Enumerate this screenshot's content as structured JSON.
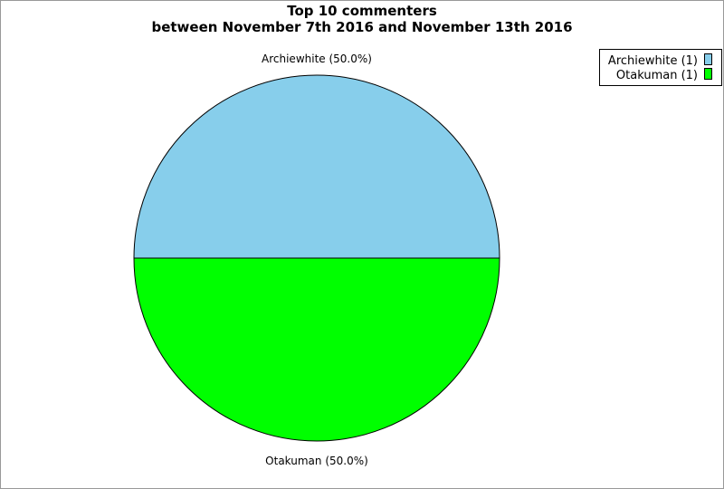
{
  "chart_data": {
    "type": "pie",
    "title": "Top 10 commenters",
    "subtitle": "between November 7th 2016 and November 13th 2016",
    "slices": [
      {
        "label": "Archiewhite",
        "value": 1,
        "percent_label": "Archiewhite (50.0%)",
        "legend_label": "Archiewhite (1)",
        "color": "#87ceeb"
      },
      {
        "label": "Otakuman",
        "value": 1,
        "percent_label": "Otakuman (50.0%)",
        "legend_label": "Otakuman (1)",
        "color": "#00ff00"
      }
    ],
    "legend_placement": "top-right"
  }
}
